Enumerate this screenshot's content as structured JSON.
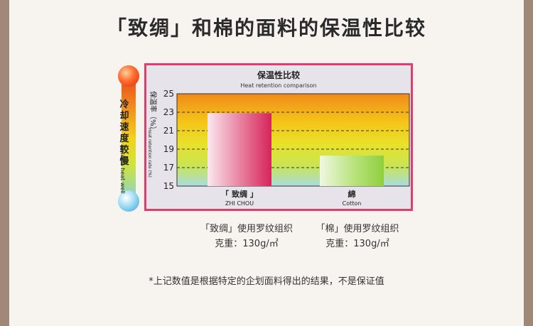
{
  "title": "「致绸」和棉的面料的保温性比较",
  "indicator": {
    "label_zh": "冷却速度较慢",
    "label_en": "Retains heat well"
  },
  "chart_data": {
    "type": "bar",
    "title": "保温性比较",
    "subtitle": "Heat retention comparison",
    "ylabel_zh": "保温率（%）",
    "ylabel_en": "Heat retention rate (%)",
    "ylim": [
      15,
      25
    ],
    "yticks": [
      15,
      17,
      19,
      21,
      23,
      25
    ],
    "dashed_gridlines": [
      17,
      19,
      21,
      23
    ],
    "categories": [
      {
        "zh": "「 致绸 」",
        "en": "ZHI CHOU"
      },
      {
        "zh": "綿",
        "en": "Cotton"
      }
    ],
    "values": [
      22.9,
      18.3
    ],
    "colors": [
      "#d6245a",
      "#8fcf3e"
    ],
    "background_gradient": [
      "#f08a1a",
      "#f5c418",
      "#e8e22a",
      "#c9e454",
      "#a8dce0"
    ]
  },
  "captions": [
    {
      "line1": "「致绸」使用罗纹组织",
      "line2": "克重：130g/㎡"
    },
    {
      "line1": "「棉」使用罗纹组织",
      "line2": "克重：130g/㎡"
    }
  ],
  "footnote": "*上记数值是根据特定的企划面料得出的结果，不是保证值"
}
